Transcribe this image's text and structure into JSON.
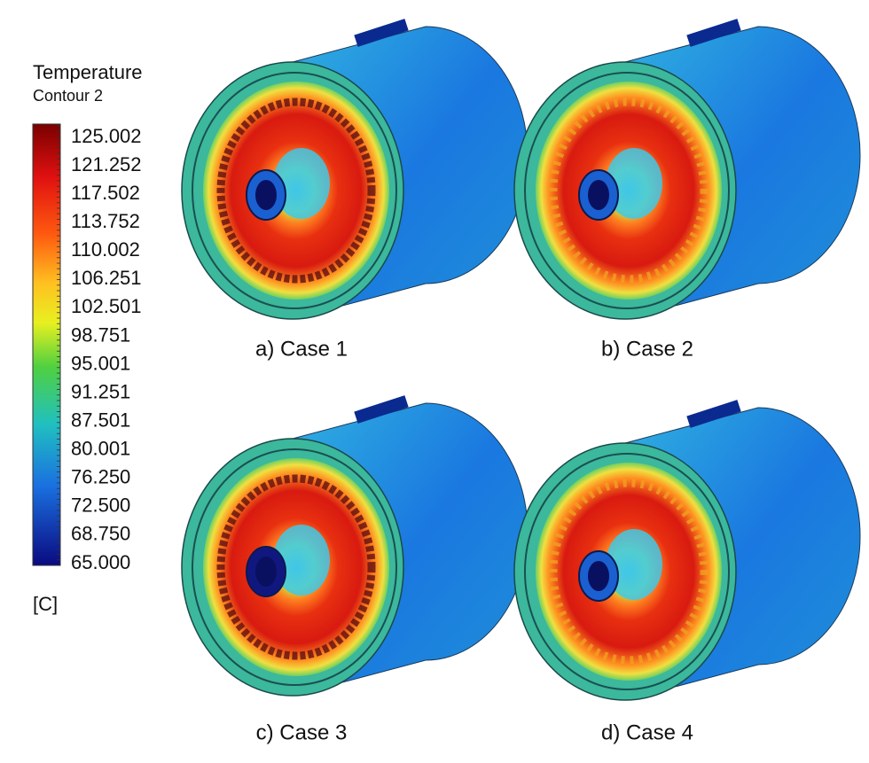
{
  "legend": {
    "title": "Temperature",
    "subtitle": "Contour 2",
    "ticks": [
      "125.002",
      "121.252",
      "117.502",
      "113.752",
      "110.002",
      "106.251",
      "102.501",
      "98.751",
      "95.001",
      "91.251",
      "87.501",
      "80.001",
      "76.250",
      "72.500",
      "68.750",
      "65.000"
    ],
    "unit": "[C]"
  },
  "panels": [
    {
      "caption": "a) Case 1"
    },
    {
      "caption": "b) Case 2"
    },
    {
      "caption": "c) Case 3"
    },
    {
      "caption": "d) Case 4"
    }
  ]
}
